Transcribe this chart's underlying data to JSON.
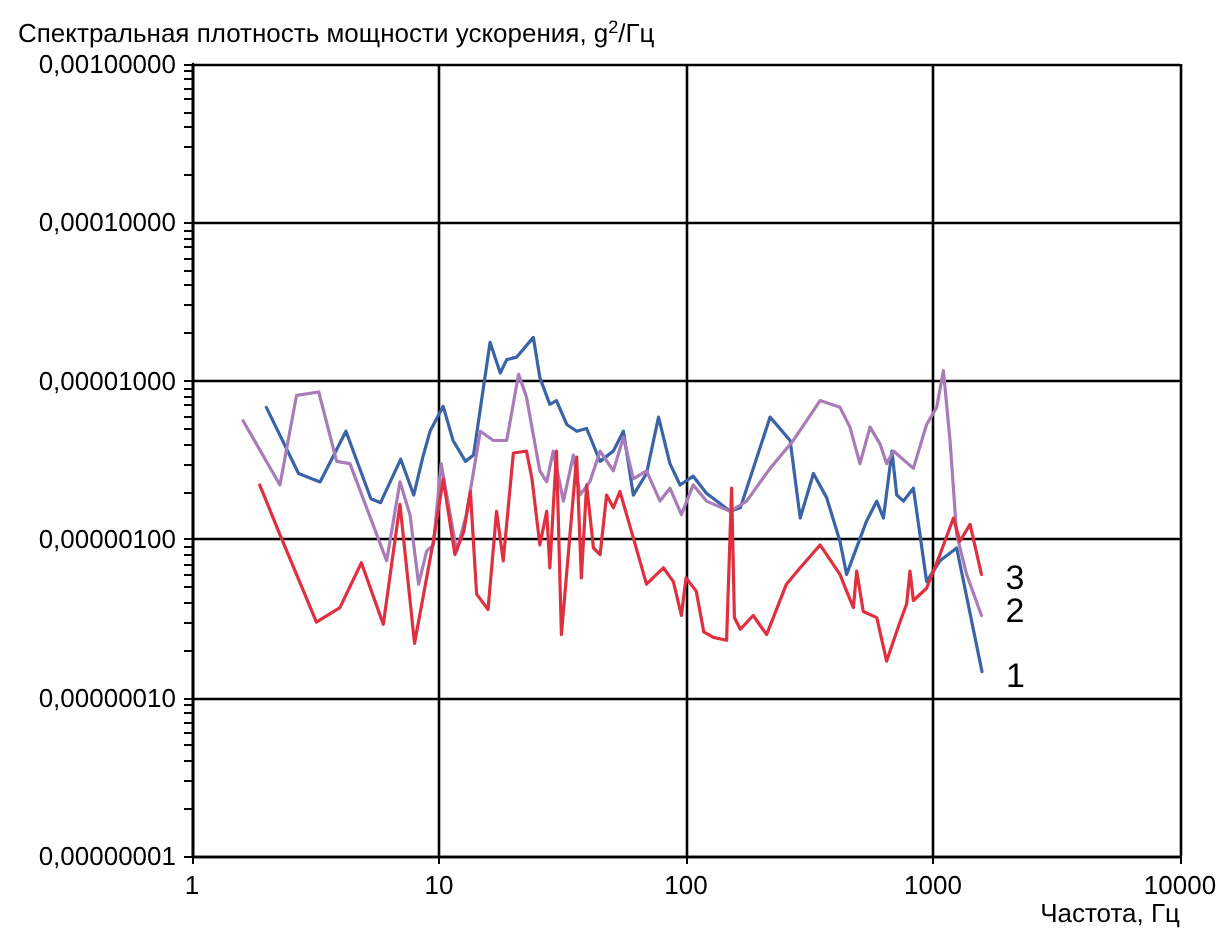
{
  "chart_data": {
    "type": "line",
    "ylabel": "Спектральная плотность мощности ускорения, g$^{2}$/Гц",
    "xlabel": "Частота, Гц",
    "log": "xy",
    "grid": true,
    "legend": false,
    "marker": "none",
    "line_style": "solid",
    "xlim": [
      1,
      10000
    ],
    "xticks": [
      1,
      10,
      100,
      1000,
      10000
    ],
    "ylim": [
      1e-08,
      0.001
    ],
    "yticks": [
      {
        "value": 1e-08,
        "label": "0,00000001"
      },
      {
        "value": 1e-07,
        "label": "0,00000010"
      },
      {
        "value": 1e-06,
        "label": "0,00000100"
      },
      {
        "value": 1e-05,
        "label": "0,00001000"
      },
      {
        "value": 0.0001,
        "label": "0,00010000"
      },
      {
        "value": 0.001,
        "label": "0,00100000"
      }
    ],
    "series": [
      {
        "name": "1",
        "color": "#3a63a8",
        "x": [
          2.0,
          2.7,
          3.3,
          4.2,
          5.3,
          5.8,
          7.0,
          7.9,
          8.6,
          9.2,
          10.4,
          11.4,
          12.8,
          13.8,
          16.1,
          17.7,
          18.8,
          20.6,
          24.1,
          25.6,
          28.1,
          29.9,
          32.9,
          36.1,
          39.6,
          44.9,
          50.8,
          55.8,
          61.2,
          69.2,
          77.4,
          86.1,
          94.6,
          107,
          121,
          151,
          166,
          219,
          264,
          290,
          328,
          371,
          420,
          447,
          538,
          592,
          630,
          682,
          713,
          759,
          833,
          942,
          1067,
          1247,
          1579
        ],
        "values": [
          6.8e-06,
          2.6e-06,
          2.3e-06,
          4.8e-06,
          1.8e-06,
          1.7e-06,
          3.2e-06,
          1.9e-06,
          3.3e-06,
          4.8e-06,
          6.9e-06,
          4.2e-06,
          3.1e-06,
          3.4e-06,
          1.75e-05,
          1.12e-05,
          1.36e-05,
          1.41e-05,
          1.88e-05,
          1.05e-05,
          7.1e-06,
          7.5e-06,
          5.3e-06,
          4.8e-06,
          5e-06,
          3.1e-06,
          3.6e-06,
          4.8e-06,
          1.9e-06,
          2.6e-06,
          5.9e-06,
          3e-06,
          2.2e-06,
          2.5e-06,
          1.95e-06,
          1.5e-06,
          1.58e-06,
          5.9e-06,
          4.2e-06,
          1.36e-06,
          2.6e-06,
          1.83e-06,
          9.7e-07,
          6e-07,
          1.3e-06,
          1.74e-06,
          1.36e-06,
          3.6e-06,
          1.9e-06,
          1.74e-06,
          2.1e-06,
          5.4e-07,
          7.3e-07,
          8.8e-07,
          1.46e-07
        ]
      },
      {
        "name": "2",
        "color": "#a97cb9",
        "x": [
          1.61,
          2.27,
          2.65,
          3.26,
          3.85,
          4.36,
          6.14,
          6.95,
          7.63,
          8.27,
          8.91,
          9.49,
          10.2,
          11.8,
          12.9,
          14.7,
          16.6,
          18.8,
          21.0,
          22.6,
          25.6,
          27.3,
          29.0,
          31.9,
          35.0,
          37.2,
          40.8,
          44.9,
          50.8,
          55.8,
          61.2,
          69.2,
          78.5,
          86.1,
          95.8,
          107,
          121,
          151,
          176,
          219,
          272,
          349,
          420,
          461,
          506,
          556,
          610,
          649,
          692,
          833,
          942,
          1035,
          1102,
          1172,
          1247,
          1368,
          1571
        ],
        "values": [
          5.6e-06,
          2.2e-06,
          8.1e-06,
          8.5e-06,
          3.1e-06,
          3e-06,
          7.3e-07,
          2.3e-06,
          1.43e-06,
          5.2e-07,
          8.4e-07,
          9.2e-07,
          3e-06,
          8.4e-07,
          1.43e-06,
          4.8e-06,
          4.2e-06,
          4.2e-06,
          1.1e-05,
          7.9e-06,
          2.7e-06,
          2.3e-06,
          3.6e-06,
          1.74e-06,
          3.4e-06,
          1.9e-06,
          2.3e-06,
          3.6e-06,
          2.7e-06,
          4.4e-06,
          2.4e-06,
          2.7e-06,
          1.74e-06,
          2.1e-06,
          1.43e-06,
          2.2e-06,
          1.74e-06,
          1.5e-06,
          1.74e-06,
          2.8e-06,
          4.2e-06,
          7.5e-06,
          6.8e-06,
          5.1e-06,
          3e-06,
          5.1e-06,
          4e-06,
          3e-06,
          3.6e-06,
          2.8e-06,
          5.3e-06,
          6.8e-06,
          1.16e-05,
          4.2e-06,
          1.07e-06,
          6e-07,
          3.3e-07
        ]
      },
      {
        "name": "3",
        "color": "#e0303f",
        "x": [
          1.88,
          2.27,
          3.19,
          3.97,
          4.85,
          5.95,
          6.95,
          7.96,
          9.49,
          10.4,
          11.6,
          12.6,
          13.4,
          14.2,
          15.8,
          17.1,
          18.2,
          20.0,
          22.6,
          23.8,
          25.6,
          27.3,
          28.1,
          29.9,
          31.3,
          33.9,
          36.1,
          37.7,
          39.6,
          42.2,
          44.9,
          47.7,
          50.8,
          54.0,
          57.5,
          69.2,
          81.0,
          88.9,
          95.8,
          100,
          110,
          118,
          129,
          146,
          153,
          157,
          166,
          187,
          212,
          255,
          290,
          349,
          420,
          447,
          476,
          491,
          522,
          592,
          649,
          735,
          782,
          807,
          833,
          942,
          1067,
          1210,
          1285,
          1413,
          1571
        ],
        "values": [
          2.2e-06,
          1.07e-06,
          3e-07,
          3.7e-07,
          7.1e-07,
          2.9e-07,
          1.66e-06,
          2.2e-07,
          9.7e-07,
          2.4e-06,
          8e-07,
          1.12e-06,
          2e-06,
          4.5e-07,
          3.6e-07,
          1.5e-06,
          7.3e-07,
          3.5e-06,
          3.6e-06,
          2.4e-06,
          9.2e-07,
          1.5e-06,
          6.6e-07,
          3.6e-06,
          2.5e-07,
          1.07e-06,
          3.3e-06,
          5.7e-07,
          2.2e-06,
          8.8e-07,
          8e-07,
          1.9e-06,
          1.58e-06,
          2e-06,
          1.43e-06,
          5.2e-07,
          6.6e-07,
          5.4e-07,
          3.3e-07,
          5.7e-07,
          4.7e-07,
          2.6e-07,
          2.4e-07,
          2.3e-07,
          2.1e-06,
          3.2e-07,
          2.7e-07,
          3.3e-07,
          2.5e-07,
          5.2e-07,
          6.6e-07,
          9.2e-07,
          6e-07,
          4.7e-07,
          3.7e-07,
          6.3e-07,
          3.5e-07,
          3.2e-07,
          1.7e-07,
          3e-07,
          3.9e-07,
          6.3e-07,
          4.1e-07,
          4.9e-07,
          8e-07,
          1.36e-06,
          9.7e-07,
          1.24e-06,
          6e-07
        ]
      }
    ]
  }
}
